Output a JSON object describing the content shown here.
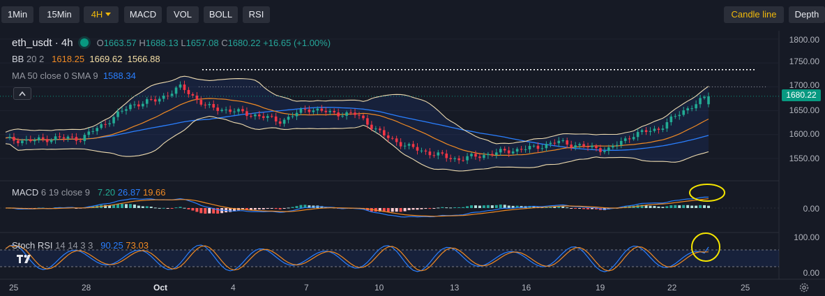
{
  "toolbar": {
    "intervals": [
      "1Min",
      "15Min",
      "4H"
    ],
    "indicators": [
      "MACD",
      "VOL",
      "BOLL",
      "RSI"
    ],
    "chart_type": "Candle line",
    "depth": "Depth"
  },
  "legend": {
    "symbol": "eth_usdt · 4h",
    "ohlc": {
      "o_label": "O",
      "o": "1663.57",
      "h_label": "H",
      "h": "1688.13",
      "l_label": "L",
      "l": "1657.08",
      "c_label": "C",
      "c": "1680.22",
      "change": "+16.65 (+1.00%)"
    },
    "bb": {
      "name": "BB",
      "params": "20 2",
      "basis": "1618.25",
      "upper": "1669.62",
      "lower": "1566.88"
    },
    "ma": {
      "name": "MA",
      "params": "50 close 0 SMA 9",
      "value": "1588.34"
    },
    "macd": {
      "name": "MACD",
      "params": "6 19 close 9",
      "hist": "7.20",
      "macd": "26.87",
      "signal": "19.66"
    },
    "stoch": {
      "name": "Stoch RSI",
      "params": "14 14 3 3",
      "k": "90.25",
      "d": "73.03"
    }
  },
  "price_scale": {
    "main": [
      "1800.00",
      "1750.00",
      "1700.00",
      "1650.00",
      "1600.00",
      "1550.00"
    ],
    "current": "1680.22",
    "macd": [
      "0.00"
    ],
    "stoch": [
      "100.00",
      "0.00"
    ]
  },
  "time_axis": [
    "25",
    "28",
    "Oct",
    "4",
    "7",
    "10",
    "13",
    "16",
    "19",
    "22",
    "25"
  ],
  "colors": {
    "up": "#22ab94",
    "down": "#f23645",
    "bb_band": "#efdcb0",
    "bb_basis": "#f08a24",
    "ma": "#2a7fff",
    "highlight": "#f5e500",
    "background": "#161a25"
  },
  "chart_data": {
    "type": "candlestick",
    "symbol": "eth_usdt",
    "interval": "4h",
    "ylim": [
      1520,
      1800
    ],
    "x_ticks": [
      "25",
      "28",
      "Oct",
      "4",
      "7",
      "10",
      "13",
      "16",
      "19",
      "22",
      "25"
    ],
    "close_path": [
      [
        "25",
        1590
      ],
      [
        "26",
        1587
      ],
      [
        "27",
        1593
      ],
      [
        "28",
        1592
      ],
      [
        "29",
        1625
      ],
      [
        "30",
        1662
      ],
      [
        "Oct 1",
        1672
      ],
      [
        "Oct 2",
        1700
      ],
      [
        "Oct 3",
        1658
      ],
      [
        "4",
        1650
      ],
      [
        "5",
        1640
      ],
      [
        "6",
        1628
      ],
      [
        "7",
        1655
      ],
      [
        "8",
        1645
      ],
      [
        "9",
        1642
      ],
      [
        "10",
        1600
      ],
      [
        "11",
        1575
      ],
      [
        "12",
        1560
      ],
      [
        "13",
        1548
      ],
      [
        "14",
        1557
      ],
      [
        "15",
        1566
      ],
      [
        "16",
        1572
      ],
      [
        "17",
        1585
      ],
      [
        "18",
        1575
      ],
      [
        "19",
        1568
      ],
      [
        "20",
        1600
      ],
      [
        "21",
        1612
      ],
      [
        "22",
        1650
      ],
      [
        "23",
        1680.22
      ]
    ],
    "reference_line": 1736,
    "last": {
      "open": 1663.57,
      "high": 1688.13,
      "low": 1657.08,
      "close": 1680.22
    },
    "macd_last": {
      "hist": 7.2,
      "macd": 26.87,
      "signal": 19.66
    },
    "stoch_last": {
      "k": 90.25,
      "d": 73.03
    },
    "stoch_bands": [
      80,
      20
    ]
  }
}
